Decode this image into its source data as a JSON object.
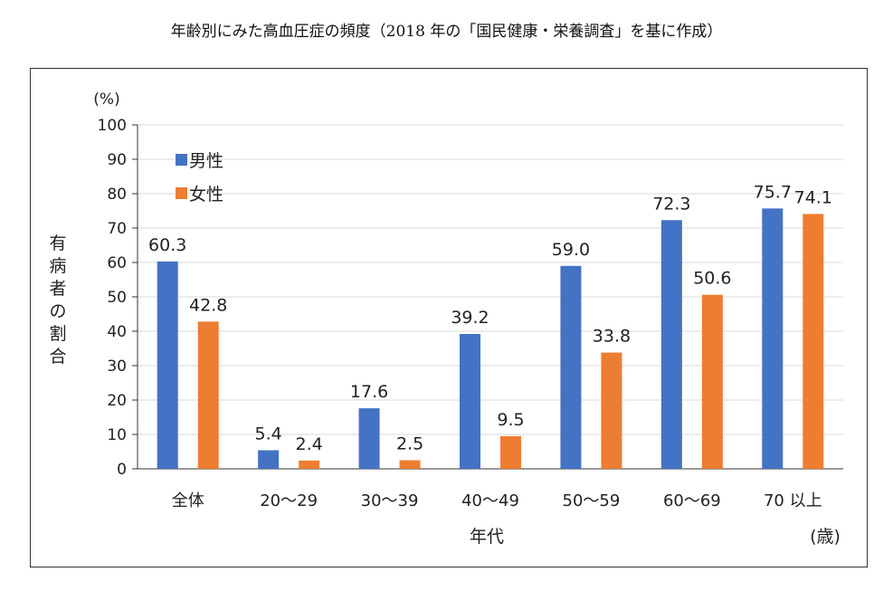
{
  "chart_data": {
    "type": "bar",
    "title": "年齢別にみた高血圧症の頻度（2018 年の「国民健康・栄養調査」を基に作成）",
    "ylabel": "有病者の割合",
    "yunit": "(%)",
    "xlabel": "年代",
    "xunit": "(歳)",
    "ylim": [
      0,
      100
    ],
    "yticks": [
      0,
      10,
      20,
      30,
      40,
      50,
      60,
      70,
      80,
      90,
      100
    ],
    "grid": true,
    "legend_position": "top-left",
    "categories": [
      "全体",
      "20〜29",
      "30〜39",
      "40〜49",
      "50〜59",
      "60〜69",
      "70 以上"
    ],
    "series": [
      {
        "name": "男性",
        "color": "#4472C4",
        "values": [
          60.3,
          5.4,
          17.6,
          39.2,
          59.0,
          72.3,
          75.7
        ]
      },
      {
        "name": "女性",
        "color": "#ED7D31",
        "values": [
          42.8,
          2.4,
          2.5,
          9.5,
          33.8,
          50.6,
          74.1
        ]
      }
    ]
  }
}
